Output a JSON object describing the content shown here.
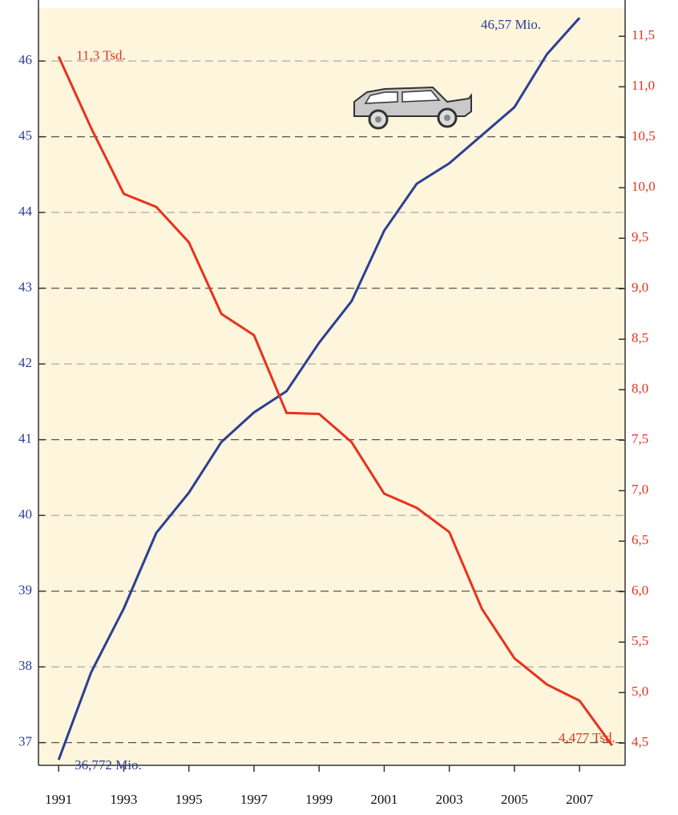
{
  "chart_data": {
    "type": "line",
    "x": [
      1991,
      1992,
      1993,
      1994,
      1995,
      1996,
      1997,
      1998,
      1999,
      2000,
      2001,
      2002,
      2003,
      2004,
      2005,
      2006,
      2007,
      2008
    ],
    "xlim": [
      1990.38,
      2008.4
    ],
    "xticks": [
      1991,
      1993,
      1995,
      1997,
      1999,
      2001,
      2003,
      2005,
      2007
    ],
    "ylim": [
      36.7,
      46.7
    ],
    "yticks": [
      37,
      38,
      39,
      40,
      41,
      42,
      43,
      44,
      45,
      46
    ],
    "y2lim": [
      4.28,
      11.78
    ],
    "y2ticks": [
      {
        "value": 4.5,
        "label": "4,5"
      },
      {
        "value": 5.0,
        "label": "5,0"
      },
      {
        "value": 5.5,
        "label": "5,5"
      },
      {
        "value": 6.0,
        "label": "6,0"
      },
      {
        "value": 6.5,
        "label": "6,5"
      },
      {
        "value": 7.0,
        "label": "7,0"
      },
      {
        "value": 7.5,
        "label": "7,5"
      },
      {
        "value": 8.0,
        "label": "8,0"
      },
      {
        "value": 8.5,
        "label": "8,5"
      },
      {
        "value": 9.0,
        "label": "9,0"
      },
      {
        "value": 9.5,
        "label": "9,5"
      },
      {
        "value": 10.0,
        "label": "10,0"
      },
      {
        "value": 10.5,
        "label": "10,5"
      },
      {
        "value": 11.0,
        "label": "11,0"
      },
      {
        "value": 11.5,
        "label": "11,5"
      }
    ],
    "grid": true,
    "series": [
      {
        "color": "#2b3f94",
        "axis": "y",
        "values": [
          36.772,
          37.93,
          38.77,
          39.77,
          40.3,
          40.97,
          41.36,
          41.64,
          42.28,
          42.83,
          43.76,
          44.38,
          44.65,
          45.02,
          45.39,
          46.09,
          46.57,
          null
        ]
      },
      {
        "color": "#e8321e",
        "axis": "y2",
        "values": [
          11.3,
          10.59,
          9.94,
          9.81,
          9.46,
          8.75,
          8.54,
          7.77,
          7.76,
          7.48,
          6.97,
          6.83,
          6.59,
          5.83,
          5.34,
          5.08,
          4.92,
          4.477
        ]
      }
    ],
    "annotations": [
      {
        "text": "11,3 Tsd.",
        "series": 1,
        "index": 0
      },
      {
        "text": "46,57 Mio.",
        "series": 0,
        "index": 16
      },
      {
        "text": "36,772 Mio.",
        "series": 0,
        "index": 0
      },
      {
        "text": "4,477 Tsd.",
        "series": 1,
        "index": 17
      }
    ]
  }
}
